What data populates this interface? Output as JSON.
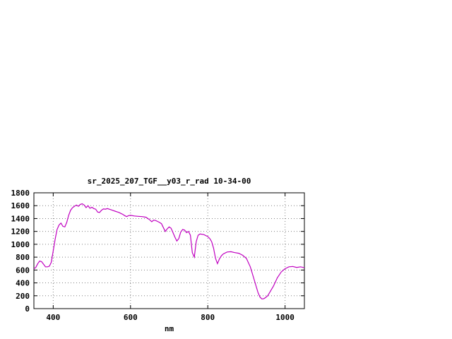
{
  "chart_data": {
    "type": "line",
    "title": "sr_2025_207_TGF__y03_r_rad 10-34-00",
    "xlabel": "nm",
    "ylabel": "",
    "xlim": [
      350,
      1050
    ],
    "ylim": [
      0,
      1800
    ],
    "xticks": [
      400,
      600,
      800,
      1000
    ],
    "yticks": [
      0,
      200,
      400,
      600,
      800,
      1000,
      1200,
      1400,
      1600,
      1800
    ],
    "grid": true,
    "legend": "none",
    "line_color": "#c000c0",
    "x": [
      350,
      355,
      360,
      365,
      370,
      375,
      380,
      385,
      390,
      395,
      400,
      405,
      410,
      415,
      420,
      425,
      430,
      435,
      440,
      445,
      450,
      455,
      460,
      465,
      470,
      475,
      480,
      485,
      490,
      495,
      500,
      505,
      510,
      515,
      520,
      525,
      530,
      535,
      540,
      545,
      550,
      555,
      560,
      565,
      570,
      575,
      580,
      585,
      590,
      595,
      600,
      610,
      620,
      630,
      640,
      650,
      655,
      660,
      665,
      670,
      675,
      680,
      685,
      690,
      695,
      700,
      705,
      710,
      715,
      720,
      725,
      730,
      735,
      740,
      745,
      750,
      755,
      760,
      765,
      770,
      775,
      780,
      790,
      800,
      805,
      810,
      815,
      820,
      825,
      830,
      835,
      840,
      850,
      860,
      870,
      880,
      890,
      900,
      910,
      920,
      930,
      935,
      940,
      945,
      950,
      955,
      960,
      970,
      980,
      990,
      1000,
      1010,
      1020,
      1030,
      1040,
      1050
    ],
    "y": [
      620,
      640,
      700,
      740,
      730,
      690,
      650,
      650,
      660,
      720,
      900,
      1080,
      1230,
      1300,
      1330,
      1280,
      1270,
      1340,
      1450,
      1530,
      1570,
      1590,
      1610,
      1590,
      1620,
      1630,
      1610,
      1570,
      1600,
      1560,
      1575,
      1555,
      1545,
      1500,
      1495,
      1530,
      1550,
      1545,
      1555,
      1545,
      1535,
      1525,
      1515,
      1505,
      1495,
      1480,
      1465,
      1445,
      1430,
      1445,
      1450,
      1440,
      1435,
      1430,
      1420,
      1380,
      1350,
      1375,
      1370,
      1355,
      1340,
      1320,
      1260,
      1200,
      1240,
      1270,
      1250,
      1180,
      1110,
      1050,
      1090,
      1190,
      1230,
      1220,
      1180,
      1200,
      1140,
      870,
      800,
      1040,
      1140,
      1160,
      1150,
      1120,
      1090,
      1040,
      940,
      780,
      700,
      770,
      820,
      850,
      880,
      885,
      870,
      860,
      830,
      780,
      650,
      450,
      250,
      180,
      150,
      155,
      175,
      200,
      250,
      350,
      480,
      570,
      620,
      650,
      655,
      640,
      650,
      635
    ]
  }
}
